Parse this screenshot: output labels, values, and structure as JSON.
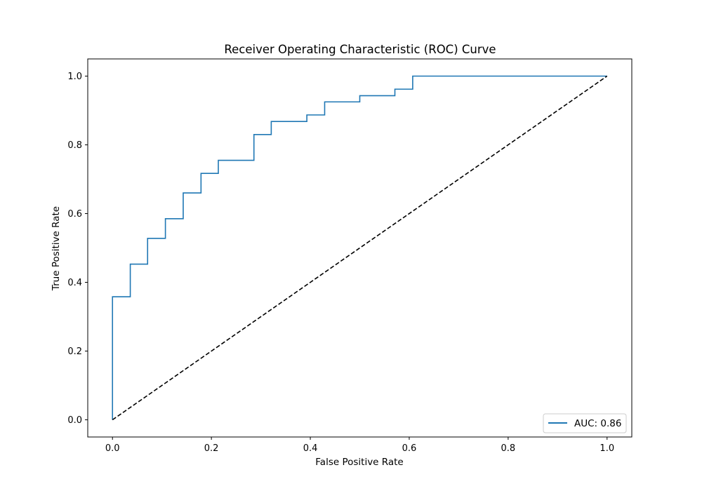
{
  "chart_data": {
    "type": "line",
    "title": "Receiver Operating Characteristic (ROC) Curve",
    "xlabel": "False Positive Rate",
    "ylabel": "True Positive Rate",
    "xlim": [
      -0.05,
      1.05
    ],
    "ylim": [
      -0.05,
      1.05
    ],
    "xticks": [
      0.0,
      0.2,
      0.4,
      0.6,
      0.8,
      1.0
    ],
    "yticks": [
      0.0,
      0.2,
      0.4,
      0.6,
      0.8,
      1.0
    ],
    "xtick_labels": [
      "0.0",
      "0.2",
      "0.4",
      "0.6",
      "0.8",
      "1.0"
    ],
    "ytick_labels": [
      "0.0",
      "0.2",
      "0.4",
      "0.6",
      "0.8",
      "1.0"
    ],
    "grid": false,
    "legend_position": "lower-right",
    "series": [
      {
        "name": "AUC: 0.86",
        "color": "#1f77b4",
        "line_style": "solid",
        "step": true,
        "x": [
          0.0,
          0.0,
          0.036,
          0.036,
          0.071,
          0.071,
          0.107,
          0.107,
          0.143,
          0.143,
          0.179,
          0.179,
          0.214,
          0.214,
          0.286,
          0.286,
          0.321,
          0.321,
          0.393,
          0.393,
          0.429,
          0.429,
          0.5,
          0.5,
          0.571,
          0.571,
          0.607,
          0.607,
          1.0
        ],
        "y": [
          0.0,
          0.358,
          0.358,
          0.453,
          0.453,
          0.528,
          0.528,
          0.585,
          0.585,
          0.66,
          0.66,
          0.717,
          0.717,
          0.755,
          0.755,
          0.83,
          0.83,
          0.868,
          0.868,
          0.887,
          0.887,
          0.925,
          0.925,
          0.943,
          0.943,
          0.962,
          0.962,
          1.0,
          1.0
        ]
      },
      {
        "name": "",
        "color": "#000000",
        "line_style": "dashed",
        "x": [
          0.0,
          1.0
        ],
        "y": [
          0.0,
          1.0
        ]
      }
    ]
  }
}
